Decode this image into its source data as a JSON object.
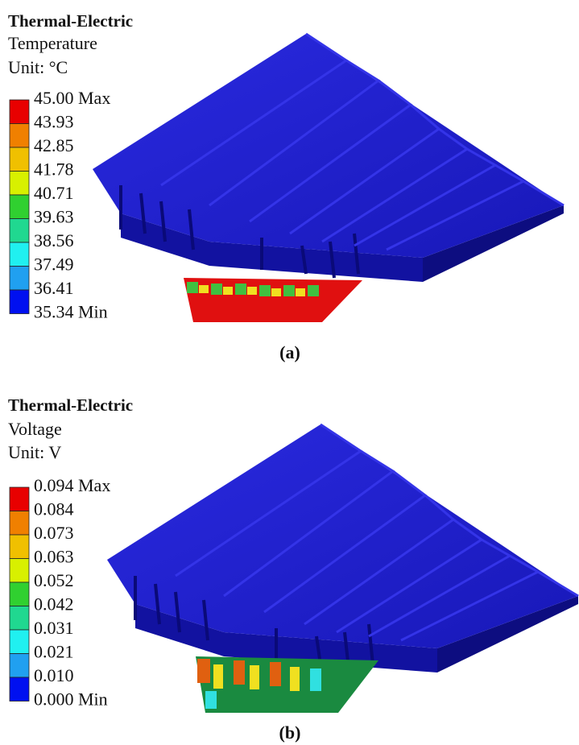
{
  "panels": [
    {
      "title": "Thermal-Electric",
      "quantity": "Temperature",
      "unit": "Unit: °C",
      "legend": [
        "45.00 Max",
        "43.93",
        "42.85",
        "41.78",
        "40.71",
        "39.63",
        "38.56",
        "37.49",
        "36.41",
        "35.34 Min"
      ],
      "caption": "(a)"
    },
    {
      "title": "Thermal-Electric",
      "quantity": "Voltage",
      "unit": "Unit: V",
      "legend": [
        "0.094 Max",
        "0.084",
        "0.073",
        "0.063",
        "0.052",
        "0.042",
        "0.031",
        "0.021",
        "0.010",
        "0.000 Min"
      ],
      "caption": "(b)"
    }
  ]
}
